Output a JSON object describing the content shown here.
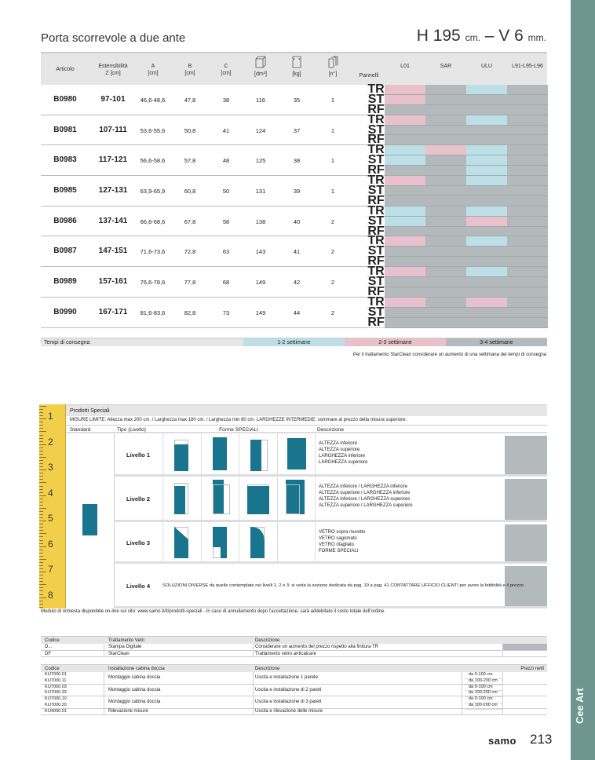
{
  "title": "Porta scorrevole a due ante",
  "dims": {
    "h": "H 195",
    "h_unit": "cm.",
    "sep": "–",
    "v": "V 6",
    "v_unit": "mm."
  },
  "side_label": "Cee Art",
  "colors": {
    "pink": "#e8c1cc",
    "blue": "#bde0e8",
    "gray": "#b4b9bb",
    "teal": "#19758e",
    "side": "#6f9590",
    "ruler": "#f2cf4a"
  },
  "main_table": {
    "headers": {
      "articolo": "Articolo",
      "est": "Estensibilità",
      "est_unit": "Z [cm]",
      "a": "A",
      "a_unit": "[cm]",
      "b": "B",
      "b_unit": "[cm]",
      "c": "C",
      "c_unit": "[cm]",
      "vol_unit": "[dm³]",
      "kg_unit": "[kg]",
      "n_unit": "[n°]",
      "pannelli": "Pannelli",
      "l01": "L01",
      "sar": "SAR",
      "ulu": "ULU",
      "l91": "L91-L95-L96"
    },
    "header_icons": [
      "box-volume-icon",
      "weight-icon",
      "panel-count-icon"
    ],
    "rows": [
      {
        "art": "B0980",
        "z": "97-101",
        "a": "46,6-48,6",
        "b": "47,8",
        "c": "38",
        "vol": "116",
        "kg": "35",
        "n": "1",
        "finishes": [
          [
            "P",
            "G",
            "B",
            "G"
          ],
          [
            "P",
            "G",
            "G",
            "G"
          ],
          [
            "G",
            "G",
            "G",
            "G"
          ]
        ]
      },
      {
        "art": "B0981",
        "z": "107-111",
        "a": "53,6-55,6",
        "b": "50,8",
        "c": "41",
        "vol": "124",
        "kg": "37",
        "n": "1",
        "finishes": [
          [
            "P",
            "G",
            "B",
            "G"
          ],
          [
            "G",
            "G",
            "G",
            "G"
          ],
          [
            "G",
            "G",
            "G",
            "G"
          ]
        ]
      },
      {
        "art": "B0983",
        "z": "117-121",
        "a": "56,6-58,6",
        "b": "57,8",
        "c": "48",
        "vol": "125",
        "kg": "38",
        "n": "1",
        "finishes": [
          [
            "B",
            "P",
            "B",
            "G"
          ],
          [
            "B",
            "G",
            "B",
            "G"
          ],
          [
            "G",
            "G",
            "B",
            "G"
          ]
        ]
      },
      {
        "art": "B0985",
        "z": "127-131",
        "a": "63,9-65,9",
        "b": "60,8",
        "c": "50",
        "vol": "131",
        "kg": "39",
        "n": "1",
        "finishes": [
          [
            "P",
            "G",
            "B",
            "G"
          ],
          [
            "G",
            "G",
            "G",
            "G"
          ],
          [
            "G",
            "G",
            "G",
            "G"
          ]
        ]
      },
      {
        "art": "B0986",
        "z": "137-141",
        "a": "66,6-68,6",
        "b": "67,8",
        "c": "58",
        "vol": "138",
        "kg": "40",
        "n": "2",
        "finishes": [
          [
            "B",
            "G",
            "B",
            "G"
          ],
          [
            "B",
            "G",
            "P",
            "G"
          ],
          [
            "G",
            "G",
            "G",
            "G"
          ]
        ]
      },
      {
        "art": "B0987",
        "z": "147-151",
        "a": "71,6-73,6",
        "b": "72,8",
        "c": "63",
        "vol": "143",
        "kg": "41",
        "n": "2",
        "finishes": [
          [
            "P",
            "G",
            "B",
            "G"
          ],
          [
            "G",
            "G",
            "G",
            "G"
          ],
          [
            "G",
            "G",
            "G",
            "G"
          ]
        ]
      },
      {
        "art": "B0989",
        "z": "157-161",
        "a": "76,6-78,6",
        "b": "77,8",
        "c": "68",
        "vol": "149",
        "kg": "42",
        "n": "2",
        "finishes": [
          [
            "P",
            "G",
            "B",
            "G"
          ],
          [
            "G",
            "G",
            "G",
            "G"
          ],
          [
            "G",
            "G",
            "G",
            "G"
          ]
        ]
      },
      {
        "art": "B0990",
        "z": "167-171",
        "a": "81,6-83,6",
        "b": "82,8",
        "c": "73",
        "vol": "149",
        "kg": "44",
        "n": "2",
        "finishes": [
          [
            "P",
            "G",
            "P",
            "G"
          ],
          [
            "G",
            "G",
            "G",
            "G"
          ],
          [
            "G",
            "G",
            "G",
            "G"
          ]
        ]
      }
    ],
    "panels": [
      "TR",
      "ST",
      "RF"
    ]
  },
  "delivery": {
    "label": "Tempi di consegna",
    "blue": "1-2 settimane",
    "pink": "2-3 settimane",
    "gray": "3-4 settimane"
  },
  "note": "Per il trattamento StarClean considerare un aumento di una settimana dei tempi di consegna",
  "special": {
    "title": "Prodotti Speciali",
    "limits": "MISURE LIMITE: Altezza max 200 cm. / Larghezza max 180 cm. / Larghezza min 80 cm.     LARGHEZZE INTERMEDIE: sommare al prezzo della misura superiore.",
    "cols": {
      "standard": "Standard",
      "tipo": "Tipo (Livello)",
      "forme": "Forme SPECIALI",
      "descr": "Descrizione"
    },
    "ruler": [
      "1",
      "2",
      "3",
      "4",
      "5",
      "6",
      "7",
      "8"
    ],
    "levels": [
      {
        "name": "Livello 1",
        "descr": [
          "ALTEZZA inferiore",
          "ALTEZZA superiore",
          "LARGHEZZA inferiore",
          "LARGHEZZA superiore"
        ]
      },
      {
        "name": "Livello 2",
        "descr": [
          "ALTEZZA inferiore / LARGHEZZA inferiore",
          "ALTEZZA superiore / LARGHEZZA inferiore",
          "ALTEZZA inferiore / LARGHEZZA superiore",
          "ALTEZZA superiore / LARGHEZZA superiore"
        ]
      },
      {
        "name": "Livello 3",
        "descr": [
          "VETRO sopra muretto",
          "VETRO sagomato",
          "VETRO ritagliato",
          "FORME SPECIALI"
        ]
      },
      {
        "name": "Livello 4",
        "descr": [
          "SOLUZIONI DIVERSE da quelle contemplate nei livelli 1, 2 e 3: si veda la sezione dedicata da pag. 19 a pag. 41 CONTATTARE UFFICIO CLIENTI per avere la fattibilità e il prezzo"
        ]
      }
    ],
    "footer": "Modulo di richiesta disponibile on-line sul sito: www.samo.it/it/prodotti-speciali - In caso di annullamento dopo l'accettazione, sarà addebitato il costo totale dell'ordine."
  },
  "treatments": {
    "headers": [
      "Codice",
      "Trattamento Vetri",
      "Descrizione"
    ],
    "rows": [
      [
        "D...",
        "Stampa Digitale",
        "Considerare un aumento del prezzo rispetto alla finitura TR"
      ],
      [
        "DF",
        "StarClean",
        "Trattamento vetro anticalcare"
      ]
    ]
  },
  "install": {
    "headers": [
      "Codice",
      "Installazione cabina doccia",
      "Descrizione",
      "Prezzi netti"
    ],
    "groups": [
      {
        "codes": [
          "KIJ7000.01",
          "KIJ7000.11"
        ],
        "type": "Montaggio cabina doccia",
        "descr": "Uscita e installazione 1 parete",
        "ranges": [
          "da 0-100 cm",
          "da 100-200 cm"
        ]
      },
      {
        "codes": [
          "KIJ7000.03",
          "KIJ7000.33"
        ],
        "type": "Montaggio cabina doccia",
        "descr": "Uscita e installazione di 2 pareti",
        "ranges": [
          "da 0-100 cm",
          "da 100-200 cm"
        ]
      },
      {
        "codes": [
          "KIJ7000.10",
          "KIJ7000.20"
        ],
        "type": "Montaggio cabina doccia",
        "descr": "Uscita e installazione di 3 pareti",
        "ranges": [
          "da 0-100 cm",
          "da 100-200 cm"
        ]
      },
      {
        "codes": [
          "KIJ4000.01"
        ],
        "type": "Rilevazione misure",
        "descr": "Uscita e rilevazione delle misure",
        "ranges": [
          ""
        ]
      }
    ]
  },
  "brand": "samo",
  "page_number": "213"
}
